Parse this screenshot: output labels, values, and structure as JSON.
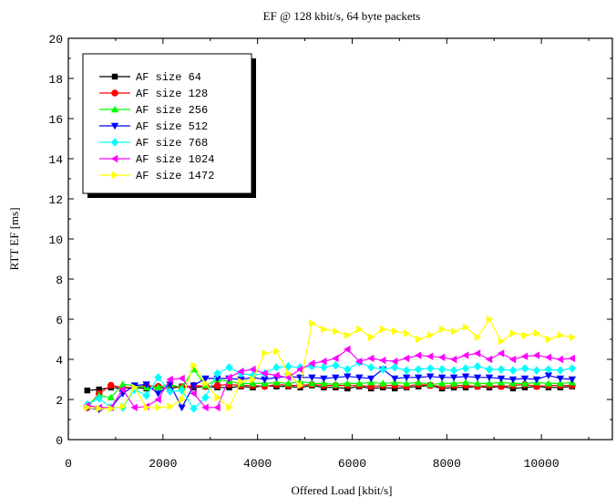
{
  "chart_data": {
    "type": "line",
    "title": "EF @ 128 kbit/s, 64 byte packets",
    "xlabel": "Offered Load [kbit/s]",
    "ylabel": "RTT EF [ms]",
    "xlim": [
      0,
      11500
    ],
    "ylim": [
      0,
      20
    ],
    "x_ticks": [
      0,
      2000,
      4000,
      6000,
      8000,
      10000
    ],
    "x_tick_labels": [
      "0",
      "2000",
      "4000",
      "6000",
      "8000",
      "10000"
    ],
    "y_ticks": [
      0,
      2,
      4,
      6,
      8,
      10,
      12,
      14,
      16,
      18,
      20
    ],
    "y_tick_labels": [
      "0",
      "2",
      "4",
      "6",
      "8",
      "10",
      "12",
      "14",
      "16",
      "18",
      "20"
    ],
    "grid": false,
    "legend_position": "top-left",
    "x": [
      400,
      650,
      900,
      1150,
      1400,
      1650,
      1900,
      2150,
      2400,
      2650,
      2900,
      3150,
      3400,
      3650,
      3900,
      4150,
      4400,
      4650,
      4900,
      5150,
      5400,
      5650,
      5900,
      6150,
      6400,
      6650,
      6900,
      7150,
      7400,
      7650,
      7900,
      8150,
      8400,
      8650,
      8900,
      9150,
      9400,
      9650,
      9900,
      10150,
      10400,
      10650
    ],
    "series": [
      {
        "name": "AF size 64",
        "color": "#000000",
        "marker": "square",
        "values": [
          2.45,
          2.5,
          2.6,
          2.55,
          2.6,
          2.55,
          2.6,
          2.55,
          2.65,
          2.6,
          2.65,
          2.6,
          2.6,
          2.65,
          2.6,
          2.7,
          2.65,
          2.65,
          2.6,
          2.7,
          2.6,
          2.6,
          2.55,
          2.65,
          2.55,
          2.6,
          2.55,
          2.6,
          2.65,
          2.7,
          2.55,
          2.6,
          2.6,
          2.65,
          2.6,
          2.65,
          2.55,
          2.6,
          2.65,
          2.6,
          2.6,
          2.65
        ]
      },
      {
        "name": "AF size 128",
        "color": "#ff0000",
        "marker": "circle",
        "values": [
          1.6,
          2.3,
          2.7,
          2.6,
          2.6,
          2.7,
          2.65,
          2.7,
          2.6,
          2.7,
          2.65,
          2.7,
          2.75,
          2.7,
          2.7,
          2.65,
          2.75,
          2.7,
          2.7,
          2.75,
          2.7,
          2.7,
          2.7,
          2.7,
          2.65,
          2.7,
          2.7,
          2.65,
          2.75,
          2.7,
          2.65,
          2.7,
          2.7,
          2.65,
          2.7,
          2.65,
          2.7,
          2.75,
          2.65,
          2.7,
          2.7,
          2.7
        ]
      },
      {
        "name": "AF size 256",
        "color": "#00ff00",
        "marker": "triangle-up",
        "values": [
          1.7,
          2.2,
          2.1,
          2.75,
          2.7,
          2.6,
          2.6,
          2.75,
          2.6,
          3.5,
          2.7,
          3.0,
          2.9,
          2.8,
          2.8,
          2.8,
          2.85,
          2.8,
          2.9,
          2.8,
          2.8,
          2.75,
          2.8,
          2.8,
          2.85,
          2.8,
          2.85,
          2.8,
          2.85,
          2.75,
          2.8,
          2.8,
          2.85,
          2.8,
          2.8,
          2.85,
          2.8,
          2.8,
          2.85,
          2.8,
          2.8,
          2.85
        ]
      },
      {
        "name": "AF size 512",
        "color": "#0000ff",
        "marker": "triangle-down",
        "values": [
          1.6,
          1.5,
          1.6,
          2.3,
          2.7,
          2.75,
          2.3,
          2.75,
          1.6,
          2.7,
          3.05,
          3.05,
          3.05,
          3.0,
          3.1,
          3.0,
          3.1,
          3.15,
          3.1,
          3.1,
          3.05,
          3.1,
          3.15,
          3.1,
          3.05,
          3.5,
          3.05,
          3.1,
          3.1,
          3.15,
          3.1,
          3.1,
          3.15,
          3.1,
          3.1,
          3.05,
          3.0,
          3.05,
          3.0,
          3.2,
          3.05,
          3.0
        ]
      },
      {
        "name": "AF size 768",
        "color": "#00ffff",
        "marker": "diamond",
        "values": [
          1.75,
          2.05,
          1.6,
          1.6,
          2.5,
          2.2,
          3.1,
          2.4,
          2.45,
          1.55,
          2.1,
          3.3,
          3.6,
          3.3,
          3.2,
          3.3,
          3.6,
          3.65,
          3.6,
          3.65,
          3.6,
          3.7,
          3.5,
          3.85,
          3.6,
          3.5,
          3.6,
          3.45,
          3.5,
          3.55,
          3.5,
          3.45,
          3.55,
          3.65,
          3.5,
          3.5,
          3.45,
          3.55,
          3.45,
          3.5,
          3.45,
          3.55
        ]
      },
      {
        "name": "AF size 1024",
        "color": "#ff00ff",
        "marker": "triangle-left",
        "values": [
          1.7,
          1.6,
          1.6,
          2.5,
          1.6,
          1.65,
          2.0,
          3.0,
          3.05,
          2.3,
          1.6,
          1.6,
          3.1,
          3.4,
          3.5,
          3.3,
          3.2,
          3.1,
          3.5,
          3.8,
          3.9,
          4.05,
          4.5,
          3.9,
          4.05,
          3.95,
          3.9,
          4.05,
          4.2,
          4.15,
          4.1,
          4.0,
          4.2,
          4.3,
          4.0,
          4.3,
          4.0,
          4.15,
          4.2,
          4.1,
          4.0,
          4.05
        ]
      },
      {
        "name": "AF size 1472",
        "color": "#ffff00",
        "marker": "triangle-right",
        "values": [
          1.6,
          1.55,
          1.55,
          1.65,
          2.6,
          1.6,
          1.6,
          1.65,
          2.0,
          3.7,
          2.8,
          2.1,
          1.6,
          2.9,
          3.0,
          4.3,
          4.4,
          3.3,
          2.7,
          5.8,
          5.5,
          5.4,
          5.2,
          5.5,
          5.1,
          5.5,
          5.4,
          5.3,
          5.0,
          5.2,
          5.5,
          5.4,
          5.6,
          5.1,
          6.0,
          4.9,
          5.3,
          5.2,
          5.3,
          5.0,
          5.2,
          5.1
        ]
      }
    ]
  }
}
